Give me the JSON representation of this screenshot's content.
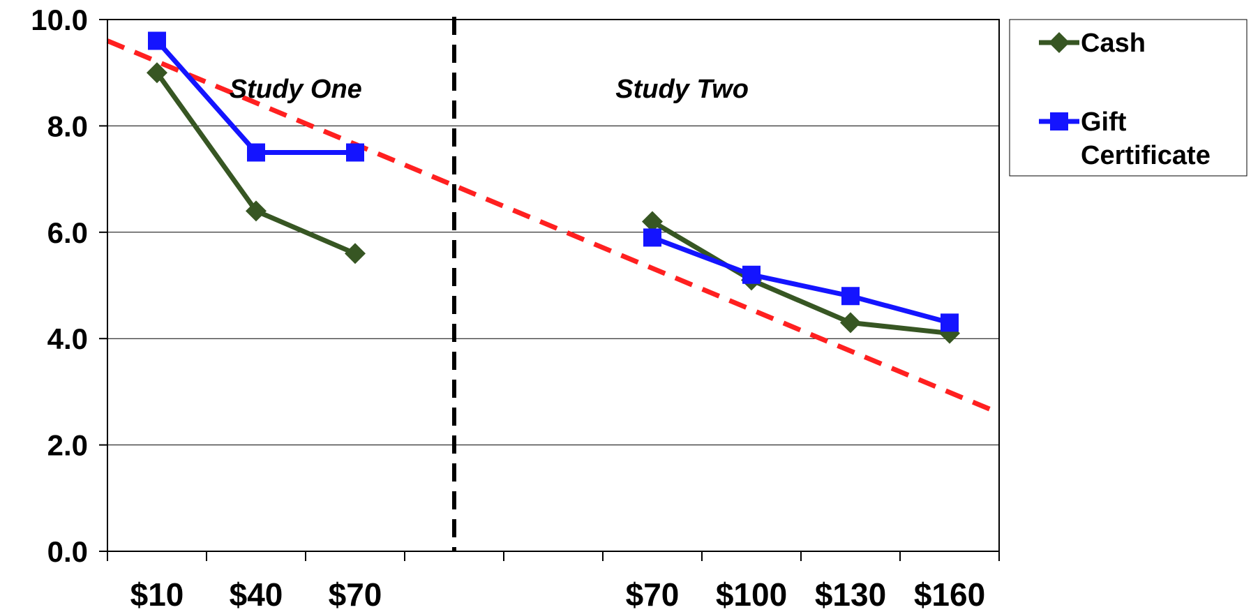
{
  "chart_data": {
    "type": "line",
    "ylim": [
      0,
      10
    ],
    "yticks": [
      "0.0",
      "2.0",
      "4.0",
      "6.0",
      "8.0",
      "10.0"
    ],
    "categories": [
      "$10",
      "$40",
      "$70",
      "",
      "",
      "$70",
      "$100",
      "$130",
      "$160"
    ],
    "series": [
      {
        "name": "Cash",
        "color": "#375623",
        "marker": "diamond",
        "values": [
          9.0,
          6.4,
          5.6,
          null,
          null,
          6.2,
          5.1,
          4.3,
          4.1
        ]
      },
      {
        "name": "Gift Certificate",
        "color": "#1414FF",
        "marker": "square",
        "values": [
          9.6,
          7.5,
          7.5,
          null,
          null,
          5.9,
          5.2,
          4.8,
          4.3
        ]
      }
    ],
    "trendline": {
      "color": "#FF2020",
      "style": "dashed",
      "start": 9.6,
      "end": 2.6
    },
    "annotations": [
      {
        "text": "Study One",
        "category_index": 1.4,
        "y": 8.7
      },
      {
        "text": "Study Two",
        "category_index": 5.3,
        "y": 8.7
      }
    ],
    "divider": {
      "category_index": 3.5,
      "style": "dashed",
      "color": "#000000"
    },
    "grid": true,
    "legend": {
      "position": "right-top",
      "entries": [
        "Cash",
        "Gift Certificate"
      ]
    }
  }
}
